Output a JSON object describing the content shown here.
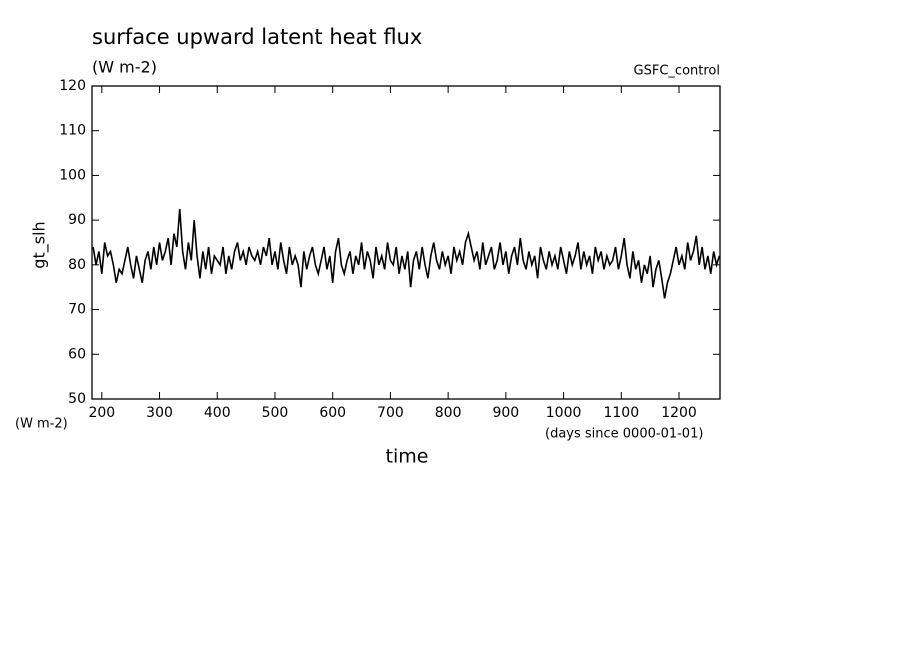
{
  "chart_data": {
    "type": "line",
    "title": "surface upward latent heat flux",
    "units": "(W m-2)",
    "run_label": "GSFC_control",
    "ylabel": "gt_slh",
    "yunits": "(W m-2)",
    "xunits": "(days since 0000-01-01)",
    "xlabel": "time",
    "xlim": [
      183,
      1271
    ],
    "ylim": [
      50,
      120
    ],
    "xticks": [
      200,
      300,
      400,
      500,
      600,
      700,
      800,
      900,
      1000,
      1100,
      1200
    ],
    "yticks": [
      50,
      60,
      70,
      80,
      90,
      100,
      110,
      120
    ],
    "x": [
      185,
      190,
      195,
      200,
      205,
      210,
      215,
      220,
      225,
      230,
      235,
      240,
      245,
      250,
      255,
      260,
      265,
      270,
      275,
      280,
      285,
      290,
      295,
      300,
      305,
      310,
      315,
      320,
      325,
      330,
      335,
      340,
      345,
      350,
      355,
      360,
      365,
      370,
      375,
      380,
      385,
      390,
      395,
      400,
      405,
      410,
      415,
      420,
      425,
      430,
      435,
      440,
      445,
      450,
      455,
      460,
      465,
      470,
      475,
      480,
      485,
      490,
      495,
      500,
      505,
      510,
      515,
      520,
      525,
      530,
      535,
      540,
      545,
      550,
      555,
      560,
      565,
      570,
      575,
      580,
      585,
      590,
      595,
      600,
      605,
      610,
      615,
      620,
      625,
      630,
      635,
      640,
      645,
      650,
      655,
      660,
      665,
      670,
      675,
      680,
      685,
      690,
      695,
      700,
      705,
      710,
      715,
      720,
      725,
      730,
      735,
      740,
      745,
      750,
      755,
      760,
      765,
      770,
      775,
      780,
      785,
      790,
      795,
      800,
      805,
      810,
      815,
      820,
      825,
      830,
      835,
      840,
      845,
      850,
      855,
      860,
      865,
      870,
      875,
      880,
      885,
      890,
      895,
      900,
      905,
      910,
      915,
      920,
      925,
      930,
      935,
      940,
      945,
      950,
      955,
      960,
      965,
      970,
      975,
      980,
      985,
      990,
      995,
      1000,
      1005,
      1010,
      1015,
      1020,
      1025,
      1030,
      1035,
      1040,
      1045,
      1050,
      1055,
      1060,
      1065,
      1070,
      1075,
      1080,
      1085,
      1090,
      1095,
      1100,
      1105,
      1110,
      1115,
      1120,
      1125,
      1130,
      1135,
      1140,
      1145,
      1150,
      1155,
      1160,
      1165,
      1170,
      1175,
      1180,
      1185,
      1190,
      1195,
      1200,
      1205,
      1210,
      1215,
      1220,
      1225,
      1230,
      1235,
      1240,
      1245,
      1250,
      1255,
      1260,
      1265,
      1270
    ],
    "series": [
      {
        "color": "#000000",
        "values": [
          84,
          80,
          83,
          78,
          85,
          82,
          83,
          80,
          76,
          79,
          78,
          81,
          84,
          80,
          77,
          82,
          79,
          76,
          81,
          83,
          79,
          84,
          80,
          85,
          81,
          83,
          86,
          80,
          87,
          84,
          92.5,
          83,
          79,
          85,
          81,
          90,
          82,
          77,
          83,
          79,
          84,
          78,
          82,
          81,
          80,
          84,
          78,
          82,
          79,
          83,
          85,
          81,
          83,
          80,
          84,
          82,
          81,
          83,
          80,
          84,
          82,
          86,
          80,
          83,
          79,
          85,
          81,
          78,
          84,
          80,
          82,
          80,
          75,
          83,
          79,
          82,
          84,
          80,
          78,
          81,
          84,
          79,
          82,
          76,
          83,
          86,
          80,
          78,
          81,
          83,
          78,
          82,
          80,
          85,
          79,
          83,
          81,
          77,
          84,
          80,
          82,
          79,
          85,
          81,
          80,
          84,
          78,
          82,
          79,
          83,
          75,
          81,
          83,
          79,
          84,
          80,
          77,
          82,
          85,
          81,
          79,
          83,
          80,
          82,
          78,
          84,
          81,
          83,
          80,
          85,
          87,
          84,
          81,
          83,
          79,
          85,
          80,
          82,
          84,
          79,
          81,
          85,
          80,
          83,
          78,
          82,
          84,
          80,
          86,
          81,
          79,
          83,
          80,
          82,
          77,
          84,
          81,
          79,
          83,
          80,
          82,
          79,
          84,
          81,
          78,
          83,
          80,
          82,
          85,
          79,
          83,
          80,
          82,
          78,
          84,
          81,
          83,
          79,
          82,
          80,
          81,
          84,
          79,
          82,
          86,
          80,
          77,
          83,
          79,
          81,
          76,
          80,
          78,
          82,
          75,
          79,
          81,
          77,
          72.5,
          76,
          78,
          81,
          84,
          80,
          82,
          79,
          85,
          81,
          83,
          86.5,
          80,
          84,
          79,
          82,
          78,
          83,
          80,
          82
        ]
      }
    ]
  }
}
